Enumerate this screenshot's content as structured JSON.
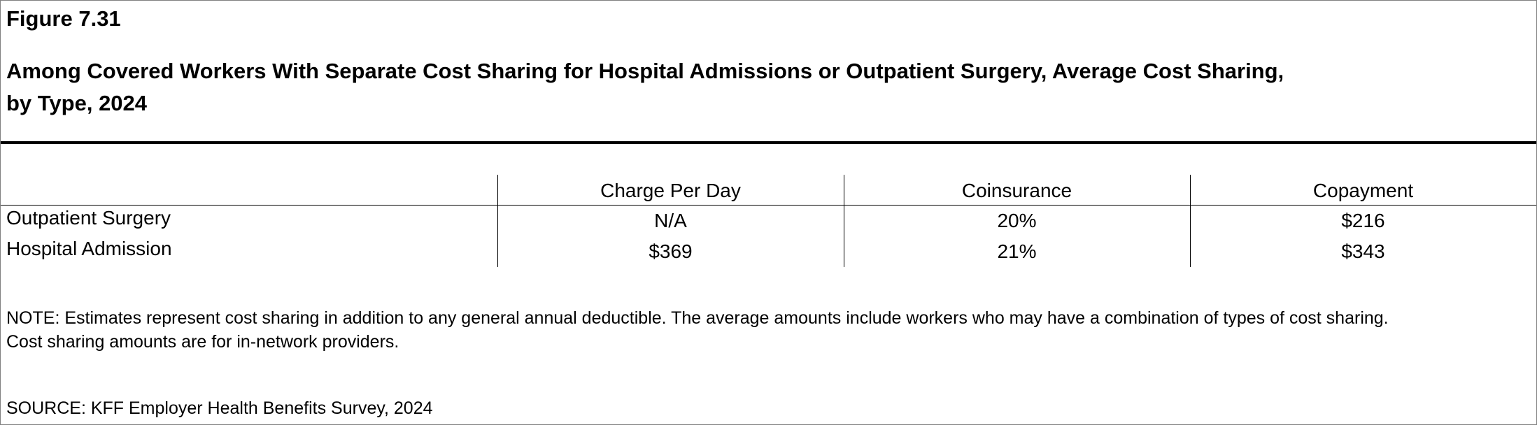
{
  "header": {
    "figure": "Figure 7.31",
    "title_lines": [
      "Among Covered Workers With Separate Cost Sharing for Hospital Admissions or Outpatient Surgery, Average Cost Sharing,",
      "by Type, 2024"
    ]
  },
  "table": {
    "columns": [
      "Charge Per Day",
      "Coinsurance",
      "Copayment"
    ],
    "rows": [
      [
        "Outpatient Surgery",
        "N/A",
        "20%",
        "$216"
      ],
      [
        "Hospital Admission",
        "$369",
        "21%",
        "$343"
      ]
    ]
  },
  "note_lines": [
    "NOTE: Estimates represent cost sharing in addition to any general annual deductible. The average amounts include workers who may have a combination of types of cost sharing.",
    "Cost sharing amounts are for in-network providers."
  ],
  "source": "SOURCE: KFF Employer Health Benefits Survey, 2024"
}
